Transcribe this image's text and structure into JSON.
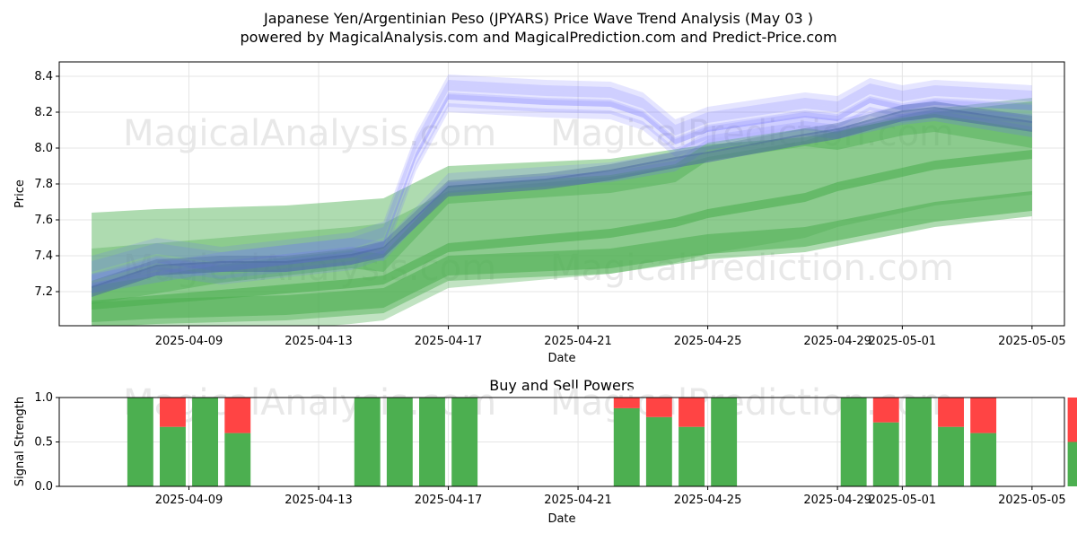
{
  "header": {
    "title": "Japanese Yen/Argentinian Peso (JPYARS) Price Wave Trend Analysis (May 03 )",
    "subtitle": "powered by MagicalAnalysis.com and MagicalPrediction.com and Predict-Price.com"
  },
  "watermarks": {
    "left": "MagicalAnalysis.com",
    "right": "MagicalPrediction.com"
  },
  "chart_data": [
    {
      "type": "area",
      "ylabel": "Price",
      "xlabel": "Date",
      "xlim": [
        "2025-04-05",
        "2025-05-06"
      ],
      "ylim": [
        7.01,
        8.48
      ],
      "yticks": [
        7.2,
        7.4,
        7.6,
        7.8,
        8.0,
        8.2,
        8.4
      ],
      "xticks": [
        "2025-04-09",
        "2025-04-13",
        "2025-04-17",
        "2025-04-21",
        "2025-04-25",
        "2025-04-29",
        "2025-05-01",
        "2025-05-05"
      ],
      "grid": true,
      "colors": {
        "blue_bands": "#6f6fff",
        "blue_core": "#4a6aa0",
        "green_bands": "#4caf50"
      },
      "series": [
        {
          "x": [
            "2025-04-06",
            "2025-04-08",
            "2025-04-10",
            "2025-04-12",
            "2025-04-14",
            "2025-04-15",
            "2025-04-17",
            "2025-04-20",
            "2025-04-22",
            "2025-04-24",
            "2025-04-25",
            "2025-04-28",
            "2025-04-29",
            "2025-05-01",
            "2025-05-02",
            "2025-05-05"
          ],
          "values": [
            7.2,
            7.32,
            7.34,
            7.34,
            7.38,
            7.42,
            7.76,
            7.8,
            7.85,
            7.92,
            7.95,
            8.05,
            8.08,
            8.18,
            8.2,
            8.12
          ]
        },
        {
          "x": [
            "2025-04-06",
            "2025-04-08",
            "2025-04-10",
            "2025-04-12",
            "2025-04-14",
            "2025-04-15",
            "2025-04-16",
            "2025-04-17",
            "2025-04-20",
            "2025-04-22",
            "2025-04-23",
            "2025-04-24",
            "2025-04-25",
            "2025-04-28",
            "2025-04-29",
            "2025-04-30",
            "2025-05-01",
            "2025-05-02",
            "2025-05-05"
          ],
          "values": [
            7.27,
            7.37,
            7.32,
            7.36,
            7.4,
            7.46,
            7.95,
            8.28,
            8.25,
            8.24,
            8.18,
            8.03,
            8.1,
            8.18,
            8.16,
            8.26,
            8.22,
            8.25,
            8.22
          ]
        },
        {
          "x": [
            "2025-04-06",
            "2025-04-10",
            "2025-04-14",
            "2025-04-15",
            "2025-04-17",
            "2025-04-22",
            "2025-04-24",
            "2025-04-25",
            "2025-04-28",
            "2025-04-29",
            "2025-05-01",
            "2025-05-02",
            "2025-05-05"
          ],
          "values": [
            7.18,
            7.3,
            7.38,
            7.36,
            7.74,
            7.8,
            7.86,
            7.98,
            8.06,
            8.04,
            8.12,
            8.14,
            8.05
          ]
        },
        {
          "x": [
            "2025-04-06",
            "2025-04-10",
            "2025-04-14",
            "2025-04-15",
            "2025-04-17",
            "2025-04-22",
            "2025-04-24",
            "2025-04-25",
            "2025-04-28",
            "2025-04-29",
            "2025-05-01",
            "2025-05-02",
            "2025-05-05"
          ],
          "values": [
            7.12,
            7.18,
            7.24,
            7.26,
            7.44,
            7.52,
            7.58,
            7.63,
            7.72,
            7.78,
            7.86,
            7.9,
            7.96
          ]
        },
        {
          "x": [
            "2025-04-06",
            "2025-04-08",
            "2025-04-12",
            "2025-04-15",
            "2025-04-17",
            "2025-04-22",
            "2025-04-25",
            "2025-04-28",
            "2025-05-02",
            "2025-05-05"
          ],
          "values": [
            7.08,
            7.1,
            7.12,
            7.16,
            7.34,
            7.38,
            7.46,
            7.5,
            7.64,
            7.7
          ]
        }
      ]
    },
    {
      "type": "bar",
      "title": "Buy and Sell Powers",
      "ylabel": "Signal Strength",
      "xlabel": "Date",
      "xlim": [
        "2025-04-05",
        "2025-05-06"
      ],
      "ylim": [
        0,
        1.0
      ],
      "yticks": [
        0.0,
        0.5,
        1.0
      ],
      "xticks": [
        "2025-04-09",
        "2025-04-13",
        "2025-04-17",
        "2025-04-21",
        "2025-04-25",
        "2025-04-29",
        "2025-05-01",
        "2025-05-05"
      ],
      "colors": {
        "buy": "#4caf50",
        "sell": "#ff4444"
      },
      "series": [
        {
          "name": "Buy",
          "x": [
            "2025-04-08",
            "2025-04-09",
            "2025-04-10",
            "2025-04-11",
            "2025-04-15",
            "2025-04-16",
            "2025-04-17",
            "2025-04-18",
            "2025-04-23",
            "2025-04-24",
            "2025-04-25",
            "2025-04-26",
            "2025-04-30",
            "2025-05-01",
            "2025-05-02",
            "2025-05-03",
            "2025-05-04",
            "2025-05-07"
          ],
          "values": [
            1.0,
            0.67,
            1.0,
            0.6,
            1.0,
            1.0,
            1.0,
            1.0,
            0.88,
            0.78,
            0.67,
            1.0,
            1.0,
            0.72,
            1.0,
            0.67,
            0.6,
            0.5
          ]
        },
        {
          "name": "Sell",
          "x": [
            "2025-04-08",
            "2025-04-09",
            "2025-04-10",
            "2025-04-11",
            "2025-04-15",
            "2025-04-16",
            "2025-04-17",
            "2025-04-18",
            "2025-04-23",
            "2025-04-24",
            "2025-04-25",
            "2025-04-26",
            "2025-04-30",
            "2025-05-01",
            "2025-05-02",
            "2025-05-03",
            "2025-05-04",
            "2025-05-07"
          ],
          "values": [
            0.0,
            0.33,
            0.0,
            0.4,
            0.0,
            0.0,
            0.0,
            0.0,
            0.12,
            0.22,
            0.33,
            0.0,
            0.0,
            0.28,
            0.0,
            0.33,
            0.4,
            0.5
          ]
        }
      ]
    }
  ]
}
